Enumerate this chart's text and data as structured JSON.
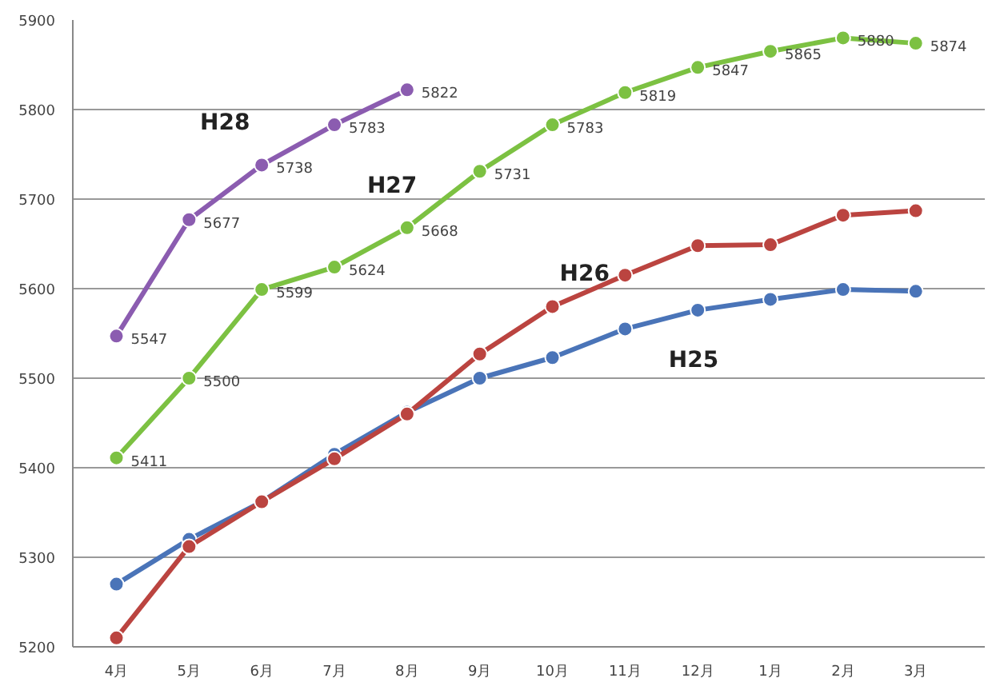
{
  "chart_data": {
    "type": "line",
    "categories": [
      "4月",
      "5月",
      "6月",
      "7月",
      "8月",
      "9月",
      "10月",
      "11月",
      "12月",
      "1月",
      "2月",
      "3月"
    ],
    "series": [
      {
        "name": "H25",
        "color": "#4a74b8",
        "values": [
          5270,
          5320,
          5362,
          5415,
          5462,
          5500,
          5523,
          5555,
          5576,
          5588,
          5599,
          5597
        ]
      },
      {
        "name": "H26",
        "color": "#bb4440",
        "values": [
          5210,
          5312,
          5362,
          5410,
          5460,
          5527,
          5580,
          5615,
          5648,
          5649,
          5682,
          5687
        ]
      },
      {
        "name": "H27",
        "color": "#7cc142",
        "values": [
          5411,
          5500,
          5599,
          5624,
          5668,
          5731,
          5783,
          5819,
          5847,
          5865,
          5880,
          5874
        ],
        "value_labels": [
          "5411",
          "5500",
          "5599",
          "5624",
          "5668",
          "5731",
          "5783",
          "5819",
          "5847",
          "5865",
          "5880",
          "5874"
        ]
      },
      {
        "name": "H28",
        "color": "#8b5cb0",
        "values": [
          5547,
          5677,
          5738,
          5783,
          5822,
          null,
          null,
          null,
          null,
          null,
          null,
          null
        ],
        "value_labels": [
          "5547",
          "5677",
          "5738",
          "5783",
          "5822",
          null,
          null,
          null,
          null,
          null,
          null,
          null
        ]
      }
    ],
    "ylim": [
      5200,
      5900
    ],
    "yticks": [
      5200,
      5300,
      5400,
      5500,
      5600,
      5700,
      5800,
      5900
    ],
    "grid": "y",
    "marker": "circle",
    "line_style": "solid"
  }
}
